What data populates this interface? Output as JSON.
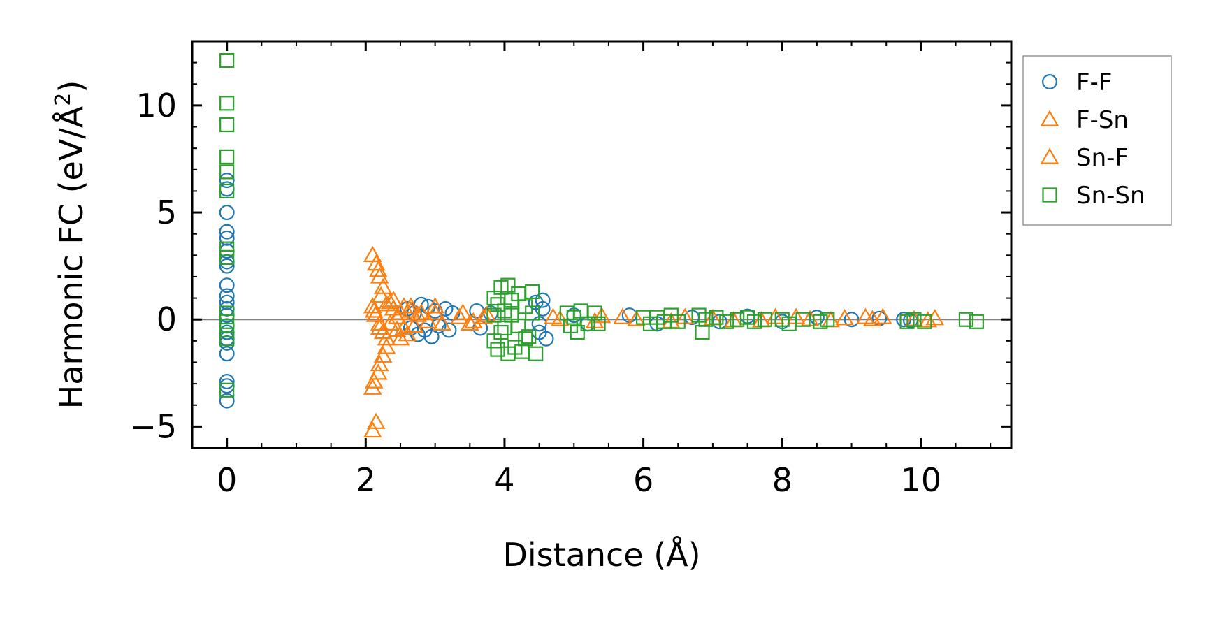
{
  "chart_data": {
    "type": "scatter",
    "title": "",
    "xlabel": "Distance (Å)",
    "ylabel_main": "Harmonic FC (eV/Å",
    "ylabel_sup": "2",
    "ylabel_tail": ")",
    "xlim": [
      -0.5,
      11.3
    ],
    "ylim": [
      -6,
      13
    ],
    "xticks": [
      0,
      2,
      4,
      6,
      8,
      10
    ],
    "xtick_labels": [
      "0",
      "2",
      "4",
      "6",
      "8",
      "10"
    ],
    "yticks": [
      -5,
      0,
      5,
      10
    ],
    "ytick_labels": [
      "−5",
      "0",
      "5",
      "10"
    ],
    "zero_line": 0,
    "legend_position": "outside-top-right",
    "series": [
      {
        "name": "F-F",
        "marker": "circle",
        "color": "#1f77b4",
        "points": [
          [
            0,
            6.5
          ],
          [
            0,
            6.1
          ],
          [
            0,
            5.0
          ],
          [
            0,
            4.1
          ],
          [
            0,
            3.8
          ],
          [
            0,
            3.2
          ],
          [
            0,
            2.7
          ],
          [
            0,
            2.5
          ],
          [
            0,
            1.6
          ],
          [
            0,
            1.1
          ],
          [
            0,
            0.8
          ],
          [
            0,
            0.5
          ],
          [
            0,
            0.2
          ],
          [
            0,
            -0.3
          ],
          [
            0,
            -0.6
          ],
          [
            0,
            -0.9
          ],
          [
            0,
            -1.1
          ],
          [
            0,
            -1.6
          ],
          [
            0,
            -2.9
          ],
          [
            0,
            -3.1
          ],
          [
            0,
            -3.8
          ],
          [
            2.6,
            0.5
          ],
          [
            2.65,
            -0.4
          ],
          [
            2.7,
            0.3
          ],
          [
            2.75,
            -0.7
          ],
          [
            2.8,
            0.7
          ],
          [
            2.85,
            -0.5
          ],
          [
            2.9,
            0.6
          ],
          [
            2.95,
            -0.8
          ],
          [
            3.0,
            0.4
          ],
          [
            3.05,
            -0.3
          ],
          [
            3.15,
            0.5
          ],
          [
            3.2,
            -0.5
          ],
          [
            3.25,
            0.3
          ],
          [
            3.6,
            0.4
          ],
          [
            3.65,
            -0.4
          ],
          [
            3.8,
            0.3
          ],
          [
            4.45,
            0.8
          ],
          [
            4.5,
            -0.6
          ],
          [
            4.55,
            0.9
          ],
          [
            4.6,
            -0.9
          ],
          [
            4.55,
            0.5
          ],
          [
            4.5,
            -0.2
          ],
          [
            5.0,
            0.2
          ],
          [
            5.2,
            -0.2
          ],
          [
            5.8,
            0.2
          ],
          [
            6.2,
            -0.2
          ],
          [
            6.7,
            0.1
          ],
          [
            7.1,
            -0.1
          ],
          [
            7.5,
            0.15
          ],
          [
            8.0,
            -0.1
          ],
          [
            8.5,
            0.1
          ],
          [
            9.0,
            0.0
          ],
          [
            9.4,
            0.05
          ],
          [
            9.75,
            0.0
          ],
          [
            9.85,
            -0.05
          ]
        ]
      },
      {
        "name": "F-Sn",
        "marker": "triangle",
        "color": "#ff7f0e",
        "points": [
          [
            2.1,
            3.0
          ],
          [
            2.15,
            2.6
          ],
          [
            2.18,
            2.3
          ],
          [
            2.2,
            2.0
          ],
          [
            2.25,
            1.5
          ],
          [
            2.22,
            1.1
          ],
          [
            2.1,
            0.6
          ],
          [
            2.14,
            0.2
          ],
          [
            2.2,
            -0.2
          ],
          [
            2.25,
            -0.6
          ],
          [
            2.3,
            -0.9
          ],
          [
            2.3,
            -1.3
          ],
          [
            2.25,
            -1.7
          ],
          [
            2.2,
            -2.1
          ],
          [
            2.18,
            -2.5
          ],
          [
            2.12,
            -2.9
          ],
          [
            2.1,
            -3.2
          ],
          [
            2.15,
            -4.8
          ],
          [
            2.1,
            -5.2
          ],
          [
            2.35,
            0.8
          ],
          [
            2.4,
            0.5
          ],
          [
            2.45,
            -0.5
          ],
          [
            2.5,
            0.3
          ],
          [
            2.55,
            0.6
          ],
          [
            2.6,
            -0.7
          ],
          [
            2.65,
            0.4
          ],
          [
            2.7,
            -0.3
          ],
          [
            2.75,
            0.2
          ],
          [
            2.5,
            -0.9
          ],
          [
            2.4,
            0.9
          ],
          [
            3.0,
            0.3
          ],
          [
            3.35,
            0.1
          ],
          [
            3.5,
            -0.2
          ],
          [
            3.7,
            0.1
          ],
          [
            4.7,
            0.1
          ],
          [
            5.4,
            0.15
          ],
          [
            5.9,
            0.0
          ],
          [
            6.6,
            0.1
          ],
          [
            7.3,
            -0.05
          ],
          [
            7.9,
            0.1
          ],
          [
            8.4,
            0.0
          ],
          [
            8.9,
            0.05
          ],
          [
            9.2,
            0.1
          ],
          [
            10.1,
            -0.05
          ],
          [
            10.2,
            0.05
          ]
        ]
      },
      {
        "name": "Sn-F",
        "marker": "triangle",
        "color": "#ff7f0e",
        "points": [
          [
            2.12,
            0.4
          ],
          [
            2.2,
            -0.4
          ],
          [
            2.3,
            0.7
          ],
          [
            2.35,
            -0.2
          ],
          [
            2.45,
            0.1
          ],
          [
            2.55,
            -0.4
          ],
          [
            2.65,
            0.6
          ],
          [
            2.8,
            0.3
          ],
          [
            2.9,
            -0.1
          ],
          [
            3.0,
            0.6
          ],
          [
            3.1,
            -0.2
          ],
          [
            3.4,
            0.3
          ],
          [
            3.55,
            -0.1
          ],
          [
            3.75,
            0.2
          ],
          [
            4.8,
            0.0
          ],
          [
            5.3,
            -0.1
          ],
          [
            5.7,
            0.1
          ],
          [
            6.4,
            -0.1
          ],
          [
            7.0,
            0.05
          ],
          [
            7.7,
            -0.05
          ],
          [
            8.2,
            0.1
          ],
          [
            8.7,
            -0.05
          ],
          [
            9.3,
            0.0
          ],
          [
            9.45,
            0.1
          ],
          [
            9.9,
            0.0
          ]
        ]
      },
      {
        "name": "Sn-Sn",
        "marker": "square",
        "color": "#2ca02c",
        "points": [
          [
            0,
            12.1
          ],
          [
            0,
            10.1
          ],
          [
            0,
            9.1
          ],
          [
            0,
            7.6
          ],
          [
            0,
            6.9
          ],
          [
            0,
            6.0
          ],
          [
            0,
            3.3
          ],
          [
            0,
            2.9
          ],
          [
            0,
            0.3
          ],
          [
            0,
            -0.1
          ],
          [
            0,
            -0.5
          ],
          [
            0,
            -0.9
          ],
          [
            0,
            -3.3
          ],
          [
            3.85,
            1.0
          ],
          [
            3.9,
            0.7
          ],
          [
            3.95,
            1.5
          ],
          [
            4.0,
            -0.4
          ],
          [
            4.05,
            1.6
          ],
          [
            4.1,
            0.2
          ],
          [
            4.15,
            -1.3
          ],
          [
            4.2,
            1.2
          ],
          [
            4.25,
            -1.5
          ],
          [
            4.3,
            0.6
          ],
          [
            4.35,
            -0.8
          ],
          [
            4.4,
            1.3
          ],
          [
            4.45,
            -1.6
          ],
          [
            3.85,
            -1.0
          ],
          [
            3.9,
            -1.4
          ],
          [
            3.95,
            -0.6
          ],
          [
            4.05,
            -1.6
          ],
          [
            4.1,
            0.9
          ],
          [
            4.0,
            0.4
          ],
          [
            3.85,
            0.2
          ],
          [
            4.2,
            -0.3
          ],
          [
            4.3,
            -0.9
          ],
          [
            4.4,
            0.3
          ],
          [
            4.9,
            0.3
          ],
          [
            4.95,
            -0.3
          ],
          [
            5.0,
            0.1
          ],
          [
            5.05,
            -0.6
          ],
          [
            5.1,
            0.4
          ],
          [
            5.2,
            -0.2
          ],
          [
            5.3,
            0.3
          ],
          [
            5.35,
            -0.2
          ],
          [
            6.0,
            0.1
          ],
          [
            6.1,
            -0.2
          ],
          [
            6.2,
            0.1
          ],
          [
            6.3,
            -0.1
          ],
          [
            6.4,
            0.2
          ],
          [
            6.5,
            -0.1
          ],
          [
            6.8,
            0.2
          ],
          [
            6.85,
            -0.6
          ],
          [
            6.9,
            0.0
          ],
          [
            7.05,
            0.1
          ],
          [
            7.2,
            -0.1
          ],
          [
            7.35,
            0.0
          ],
          [
            7.5,
            0.1
          ],
          [
            7.6,
            -0.1
          ],
          [
            7.75,
            0.0
          ],
          [
            8.0,
            0.0
          ],
          [
            8.1,
            -0.2
          ],
          [
            8.3,
            0.0
          ],
          [
            8.55,
            -0.1
          ],
          [
            8.65,
            0.0
          ],
          [
            9.8,
            -0.1
          ],
          [
            9.9,
            0.0
          ],
          [
            10.05,
            -0.1
          ],
          [
            10.65,
            0.0
          ],
          [
            10.8,
            -0.1
          ]
        ]
      }
    ]
  }
}
